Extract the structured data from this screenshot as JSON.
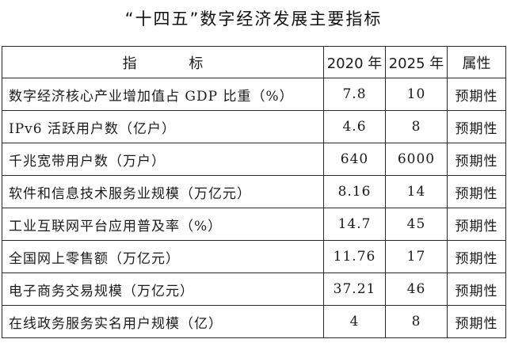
{
  "title": "“十四五”数字经济发展主要指标",
  "table": {
    "headers": [
      "指  标",
      "2020 年",
      "2025 年",
      "属性"
    ],
    "rows": [
      {
        "indicator": "数字经济核心产业增加值占 GDP 比重（%）",
        "y2020": "7.8",
        "y2025": "10",
        "attr": "预期性"
      },
      {
        "indicator": "IPv6 活跃用户数（亿户）",
        "y2020": "4.6",
        "y2025": "8",
        "attr": "预期性"
      },
      {
        "indicator": "千兆宽带用户数（万户）",
        "y2020": "640",
        "y2025": "6000",
        "attr": "预期性"
      },
      {
        "indicator": "软件和信息技术服务业规模（万亿元）",
        "y2020": "8.16",
        "y2025": "14",
        "attr": "预期性"
      },
      {
        "indicator": "工业互联网平台应用普及率（%）",
        "y2020": "14.7",
        "y2025": "45",
        "attr": "预期性"
      },
      {
        "indicator": "全国网上零售额（万亿元）",
        "y2020": "11.76",
        "y2025": "17",
        "attr": "预期性"
      },
      {
        "indicator": "电子商务交易规模（万亿元）",
        "y2020": "37.21",
        "y2025": "46",
        "attr": "预期性"
      },
      {
        "indicator": "在线政务服务实名用户规模（亿）",
        "y2020": "4",
        "y2025": "8",
        "attr": "预期性"
      }
    ]
  }
}
